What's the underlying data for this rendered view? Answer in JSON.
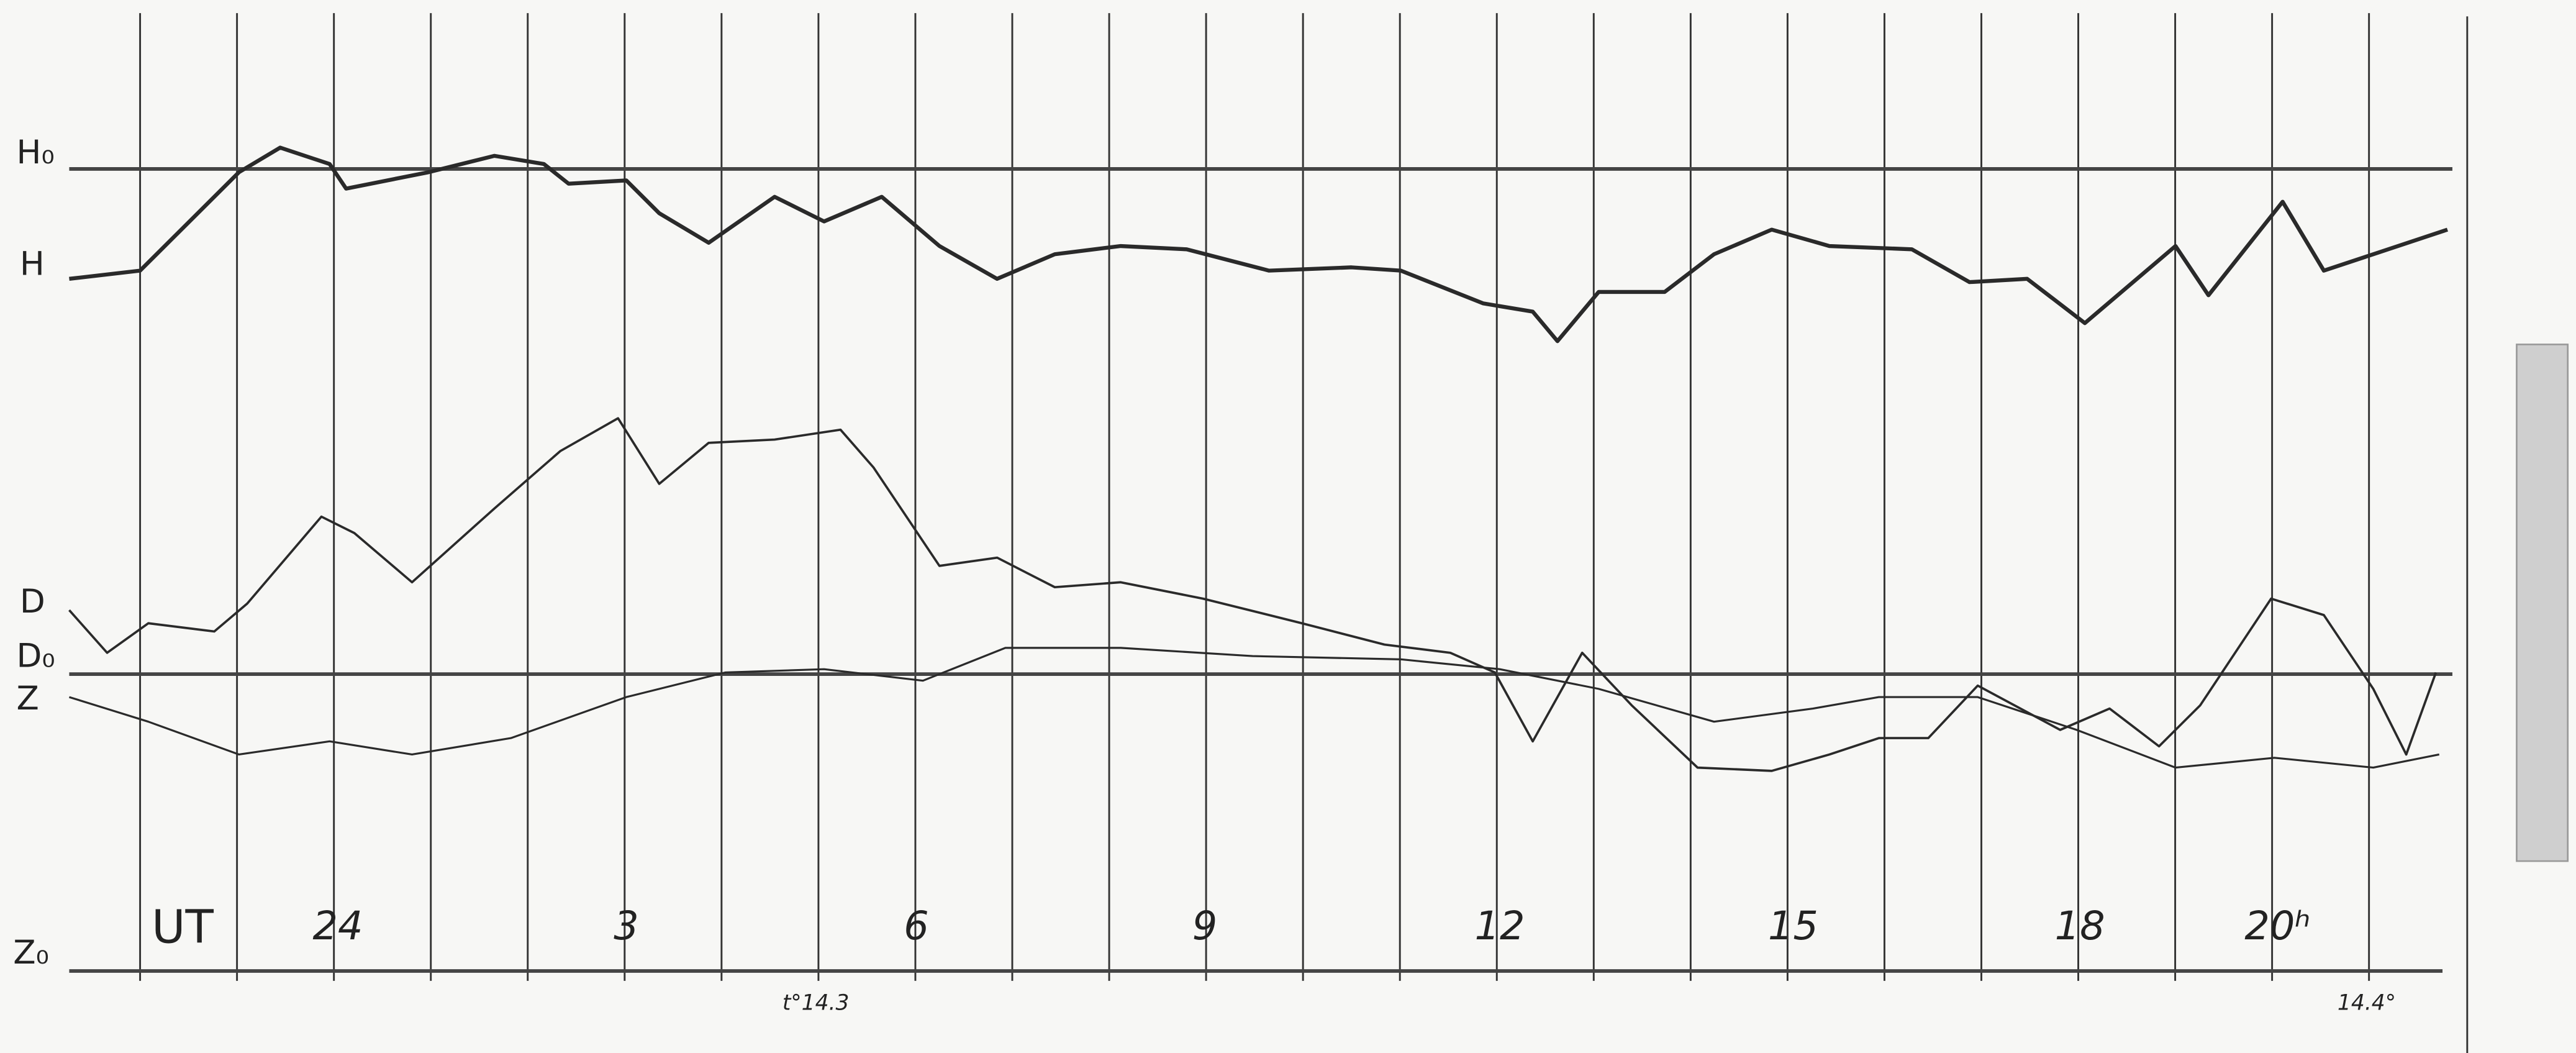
{
  "labels": {
    "h0": "H₀",
    "h": "H",
    "d": "D",
    "d0": "D₀",
    "z": "Z",
    "z0": "Z₀"
  },
  "time_axis": {
    "unit": "UT",
    "hours": [
      "24",
      "3",
      "6",
      "9",
      "12",
      "15",
      "18",
      "20ʰ"
    ]
  },
  "notes": [
    "t°14.3",
    "14.4°"
  ]
}
